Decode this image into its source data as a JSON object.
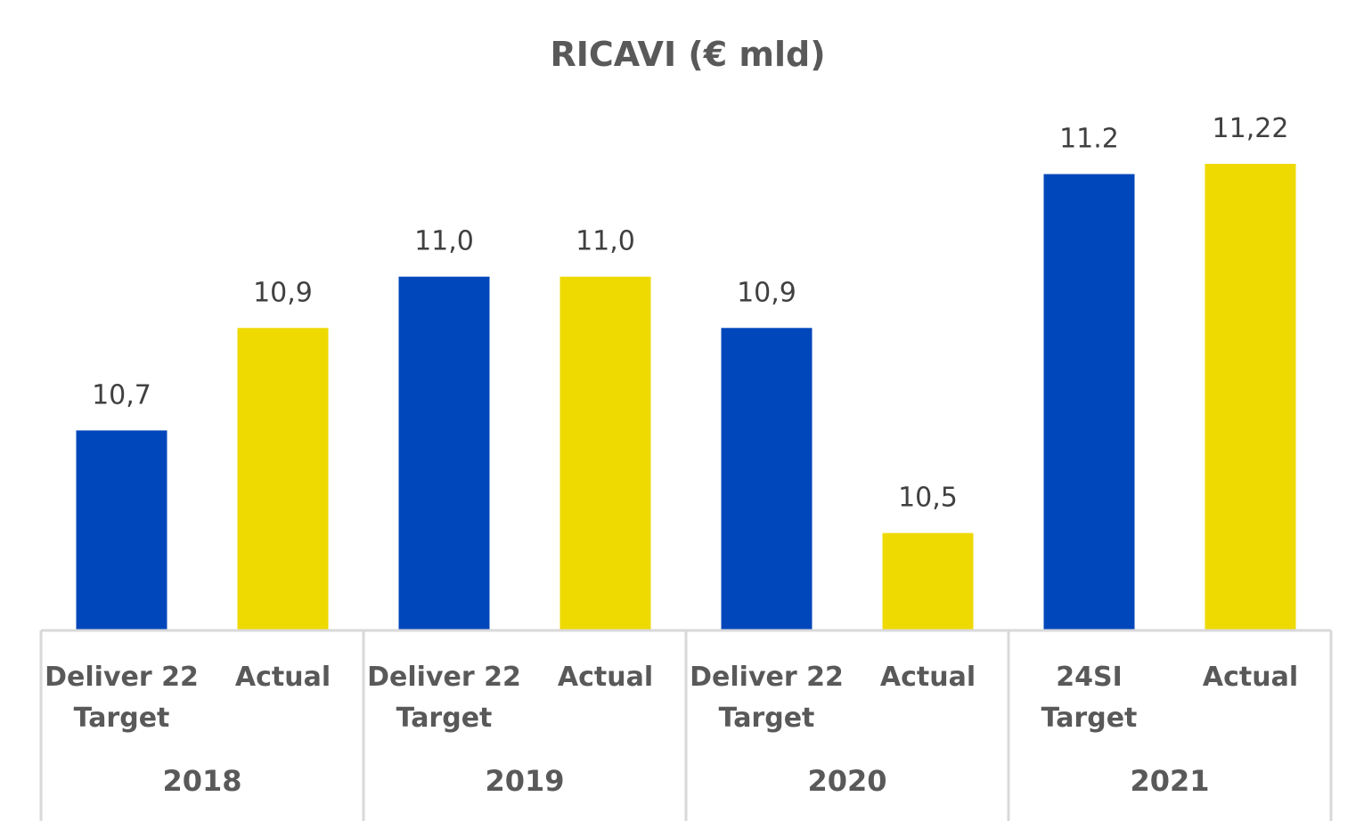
{
  "chart_data": {
    "type": "bar",
    "title": "RICAVI (€ mld)",
    "groups": [
      "2018",
      "2019",
      "2020",
      "2021"
    ],
    "categories": [
      {
        "group": "2018",
        "label_lines": [
          "Deliver 22",
          "Target"
        ],
        "value": 10.7,
        "value_label": "10,7",
        "kind": "target"
      },
      {
        "group": "2018",
        "label_lines": [
          "Actual"
        ],
        "value": 10.9,
        "value_label": "10,9",
        "kind": "actual"
      },
      {
        "group": "2019",
        "label_lines": [
          "Deliver 22",
          "Target"
        ],
        "value": 11.0,
        "value_label": "11,0",
        "kind": "target"
      },
      {
        "group": "2019",
        "label_lines": [
          "Actual"
        ],
        "value": 11.0,
        "value_label": "11,0",
        "kind": "actual"
      },
      {
        "group": "2020",
        "label_lines": [
          "Deliver 22",
          "Target"
        ],
        "value": 10.9,
        "value_label": "10,9",
        "kind": "target"
      },
      {
        "group": "2020",
        "label_lines": [
          "Actual"
        ],
        "value": 10.5,
        "value_label": "10,5",
        "kind": "actual"
      },
      {
        "group": "2021",
        "label_lines": [
          "24SI",
          "Target"
        ],
        "value": 11.2,
        "value_label": "11.2",
        "kind": "target"
      },
      {
        "group": "2021",
        "label_lines": [
          "Actual"
        ],
        "value": 11.22,
        "value_label": "11,22",
        "kind": "actual"
      }
    ],
    "ylim": [
      10.31,
      11.22
    ],
    "grid": false,
    "legend": "none",
    "colors": {
      "target": "#0047bb",
      "actual": "#eed900",
      "axis": "#d9d9d9",
      "title": "#595959",
      "label": "#404040"
    }
  }
}
